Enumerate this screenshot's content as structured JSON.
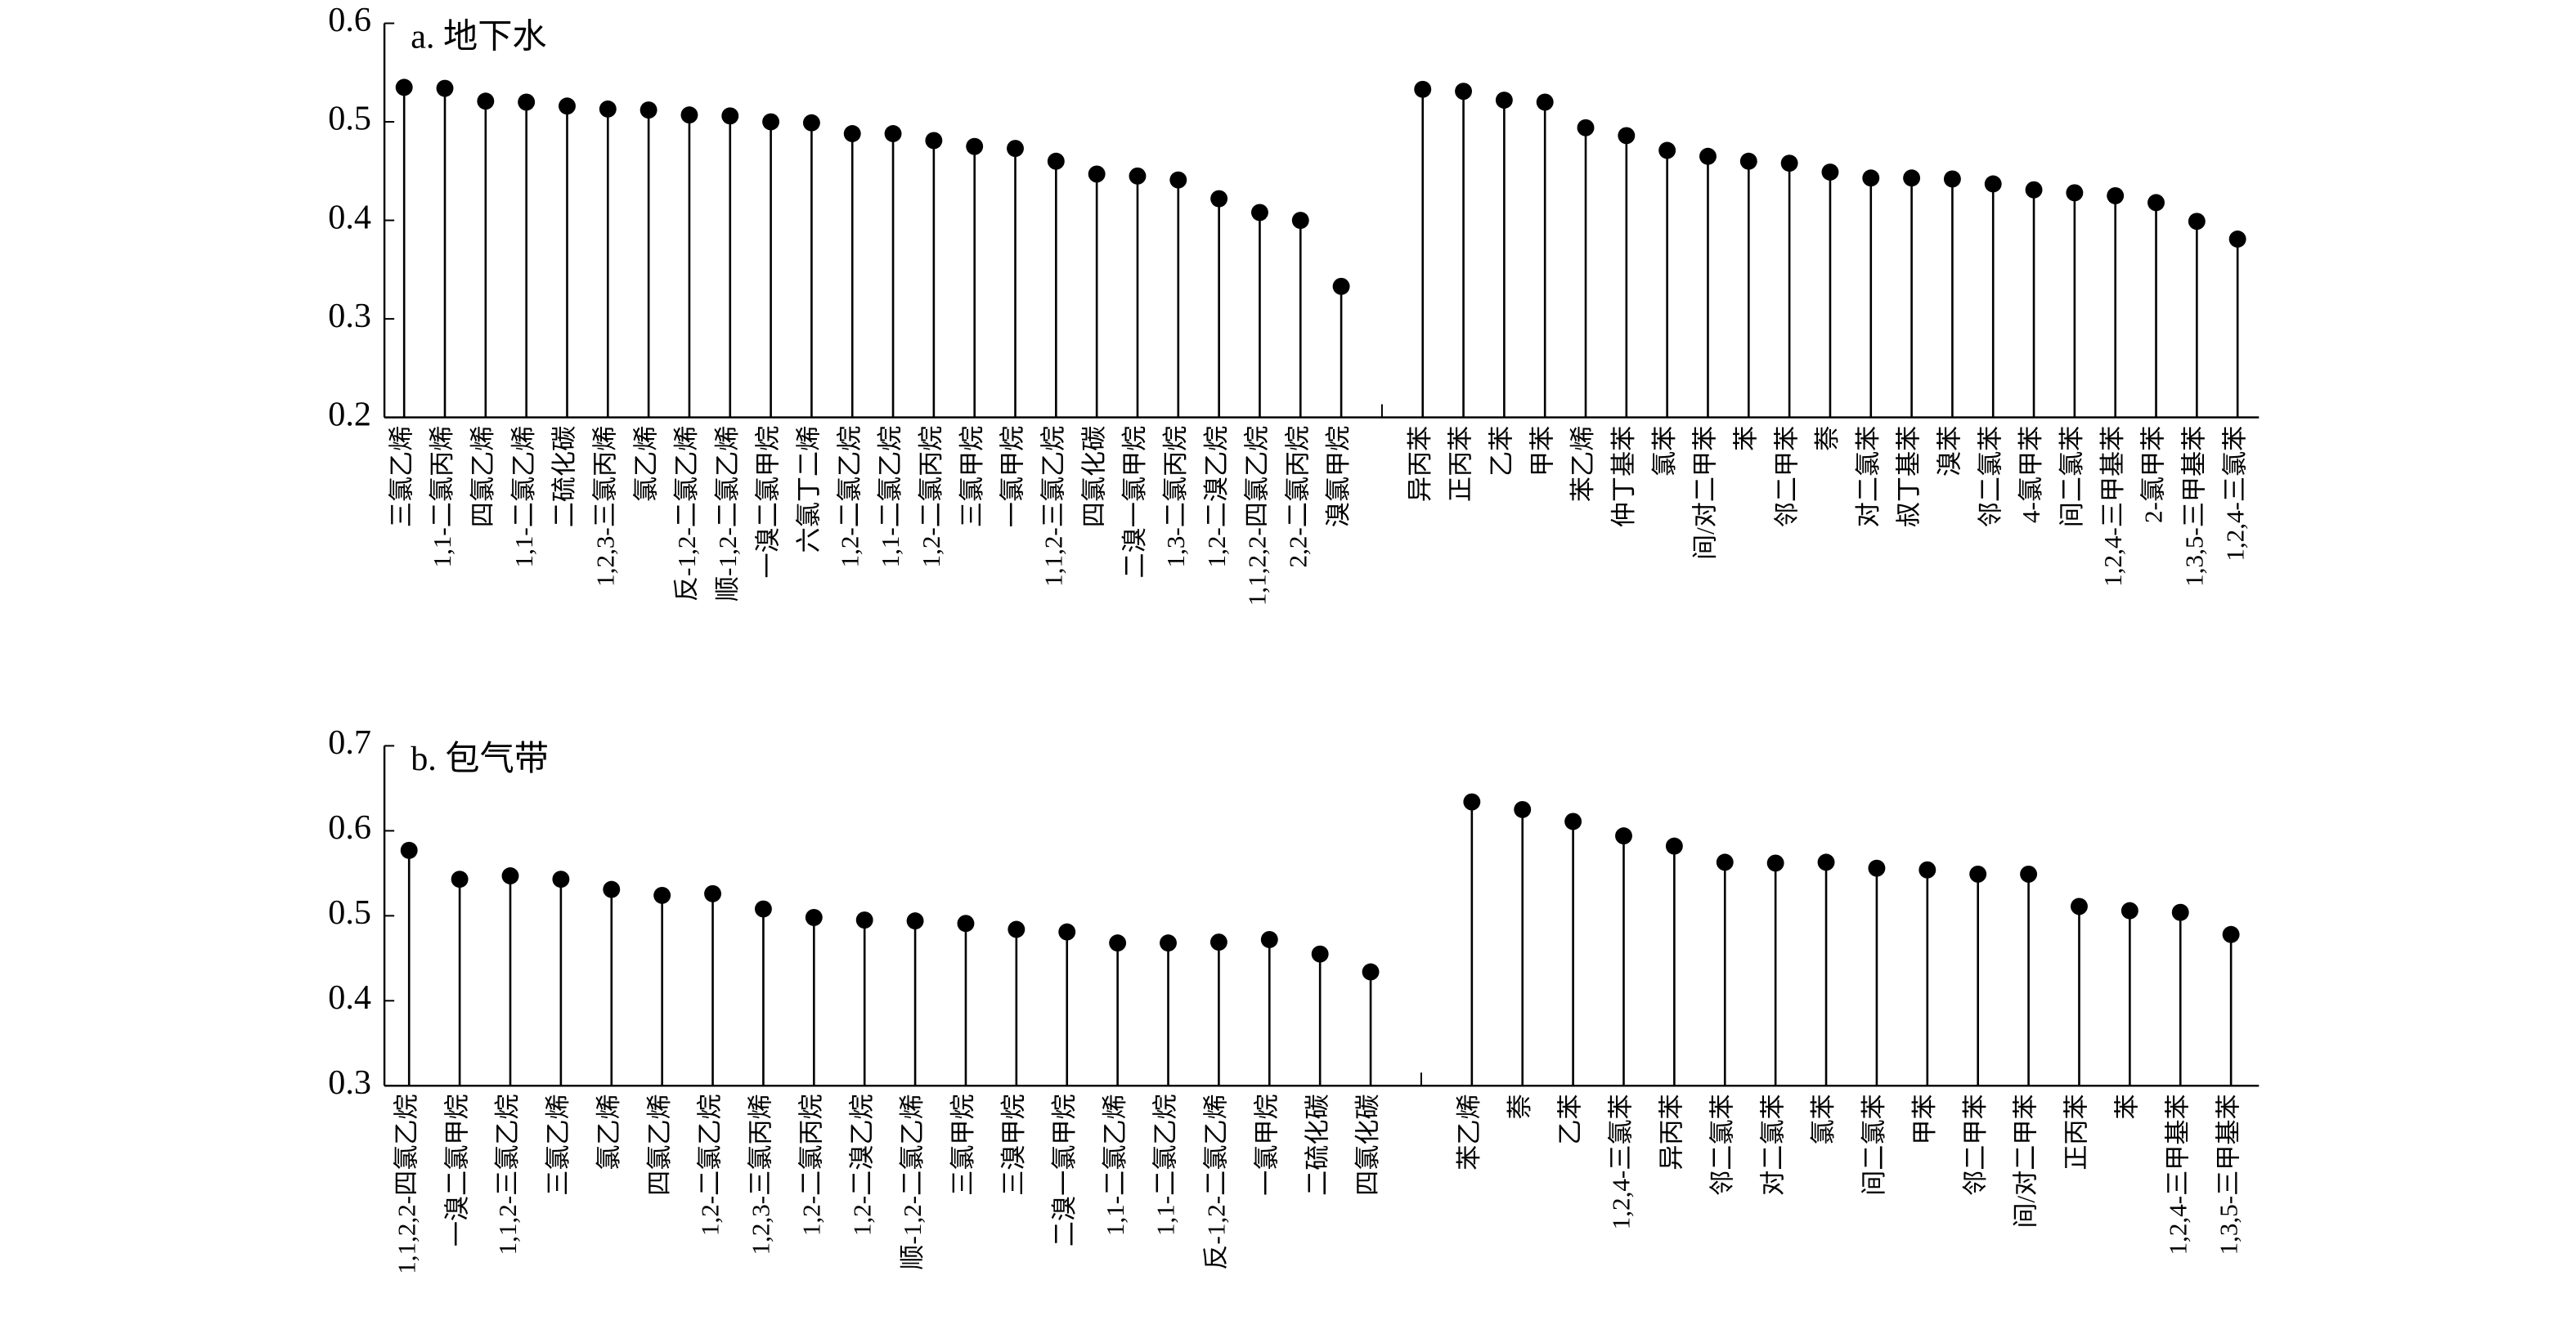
{
  "chart_data": [
    {
      "type": "stem",
      "title": "a. 地下水",
      "color": "#000000",
      "categories": [
        "三氯乙烯",
        "1,1-二氯丙烯",
        "四氯乙烯",
        "1,1-二氯乙烯",
        "二硫化碳",
        "1,2,3-三氯丙烯",
        "氯乙烯",
        "反-1,2-二氯乙烯",
        "顺-1,2-二氯乙烯",
        "一溴二氯甲烷",
        "六氯丁二烯",
        "1,2-二氯乙烷",
        "1,1-二氯乙烷",
        "1,2-二氯丙烷",
        "三氯甲烷",
        "一氯甲烷",
        "1,1,2-三氯乙烷",
        "四氯化碳",
        "二溴一氯甲烷",
        "1,3-二氯丙烷",
        "1,2-二溴乙烷",
        "1,1,2,2-四氯乙烷",
        "2,2-二氯丙烷",
        "溴氯甲烷",
        null,
        "异丙苯",
        "正丙苯",
        "乙苯",
        "甲苯",
        "苯乙烯",
        "仲丁基苯",
        "氯苯",
        "间/对二甲苯",
        "苯",
        "邻二甲苯",
        "萘",
        "对二氯苯",
        "叔丁基苯",
        "溴苯",
        "邻二氯苯",
        "4-氯甲苯",
        "间二氯苯",
        "1,2,4-三甲基苯",
        "2-氯甲苯",
        "1,3,5-三甲基苯",
        "1,2,4-三氯苯"
      ],
      "values": [
        0.535,
        0.534,
        0.521,
        0.52,
        0.516,
        0.513,
        0.512,
        0.507,
        0.506,
        0.5,
        0.499,
        0.488,
        0.488,
        0.481,
        0.475,
        0.473,
        0.46,
        0.447,
        0.445,
        0.441,
        0.422,
        0.408,
        0.4,
        0.333,
        null,
        0.533,
        0.531,
        0.522,
        0.52,
        0.494,
        0.486,
        0.471,
        0.465,
        0.46,
        0.458,
        0.449,
        0.443,
        0.443,
        0.442,
        0.437,
        0.431,
        0.428,
        0.425,
        0.418,
        0.399,
        0.381
      ],
      "ylim": [
        0.2,
        0.6
      ],
      "yticks": [
        0.2,
        0.3,
        0.4,
        0.5,
        0.6
      ]
    },
    {
      "type": "stem",
      "title": "b. 包气带",
      "color": "#000000",
      "categories": [
        "1,1,2,2-四氯乙烷",
        "一溴二氯甲烷",
        "1,1,2-三氯乙烷",
        "三氯乙烯",
        "氯乙烯",
        "四氯乙烯",
        "1,2-二氯乙烷",
        "1,2,3-三氯丙烯",
        "1,2-二氯丙烷",
        "1,2-二溴乙烷",
        "顺-1,2-二氯乙烯",
        "三氯甲烷",
        "三溴甲烷",
        "二溴一氯甲烷",
        "1,1-二氯乙烯",
        "1,1-二氯乙烷",
        "反-1,2-二氯乙烯",
        "一氯甲烷",
        "二硫化碳",
        "四氯化碳",
        null,
        "苯乙烯",
        "萘",
        "乙苯",
        "1,2,4-三氯苯",
        "异丙苯",
        "邻二氯苯",
        "对二氯苯",
        "氯苯",
        "间二氯苯",
        "甲苯",
        "邻二甲苯",
        "间/对二甲苯",
        "正丙苯",
        "苯",
        "1,2,4-三甲基苯",
        "1,3,5-三甲基苯"
      ],
      "values": [
        0.577,
        0.543,
        0.547,
        0.543,
        0.531,
        0.524,
        0.526,
        0.508,
        0.498,
        0.495,
        0.494,
        0.491,
        0.484,
        0.481,
        0.468,
        0.468,
        0.469,
        0.472,
        0.455,
        0.434,
        null,
        0.634,
        0.625,
        0.611,
        0.594,
        0.582,
        0.563,
        0.562,
        0.563,
        0.556,
        0.554,
        0.549,
        0.549,
        0.511,
        0.506,
        0.504,
        0.478
      ],
      "ylim": [
        0.3,
        0.7
      ],
      "yticks": [
        0.3,
        0.4,
        0.5,
        0.6,
        0.7
      ]
    }
  ]
}
